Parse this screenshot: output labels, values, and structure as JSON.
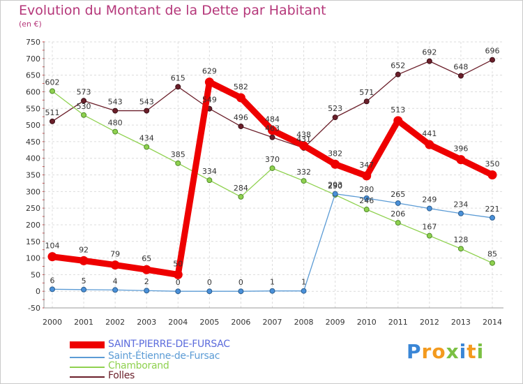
{
  "chart_data": {
    "type": "line",
    "title": "Evolution du Montant de la Dette par Habitant",
    "subtitle": "(en €)",
    "x": [
      "2000",
      "2001",
      "2002",
      "2003",
      "2004",
      "2005",
      "2006",
      "2007",
      "2008",
      "2009",
      "2010",
      "2011",
      "2012",
      "2013",
      "2014"
    ],
    "yticks": [
      "-50",
      "0",
      "50",
      "100",
      "150",
      "200",
      "250",
      "300",
      "350",
      "400",
      "450",
      "500",
      "550",
      "600",
      "650",
      "700",
      "750"
    ],
    "ylim": [
      -50,
      750
    ],
    "grid": true,
    "legend_position": "bottom-left",
    "series": [
      {
        "name": "SAINT-PIERRE-DE-FURSAC",
        "color": "#ee0000",
        "values": [
          104,
          92,
          79,
          65,
          50,
          629,
          582,
          484,
          438,
          382,
          347,
          513,
          441,
          396,
          350
        ],
        "labels": [
          "104",
          "92",
          "79",
          "65",
          "50",
          "629",
          "582",
          "484",
          "438",
          "382",
          "347",
          "513",
          "441",
          "396",
          "350"
        ]
      },
      {
        "name": "Saint-Étienne-de-Fursac",
        "color": "#5b9bd5",
        "values": [
          6,
          5,
          4,
          2,
          0,
          0,
          0,
          1,
          1,
          293,
          280,
          265,
          249,
          234,
          221
        ],
        "labels": [
          "6",
          "5",
          "4",
          "2",
          "0",
          "0",
          "0",
          "1",
          "1",
          "293",
          "280",
          "265",
          "249",
          "234",
          "221"
        ]
      },
      {
        "name": "Chamborand",
        "color": "#8fd14f",
        "values": [
          602,
          530,
          480,
          434,
          385,
          334,
          284,
          370,
          332,
          290,
          246,
          206,
          167,
          128,
          85
        ],
        "labels": [
          "602",
          "530",
          "480",
          "434",
          "385",
          "334",
          "284",
          "370",
          "332",
          "290",
          "246",
          "206",
          "167",
          "128",
          "85"
        ]
      },
      {
        "name": "Folles",
        "color": "#6b1f2a",
        "values": [
          511,
          573,
          543,
          543,
          615,
          549,
          496,
          463,
          431,
          523,
          571,
          652,
          692,
          648,
          696
        ],
        "labels": [
          "511",
          "573",
          "543",
          "543",
          "615",
          "549",
          "496",
          "463",
          "431",
          "523",
          "571",
          "652",
          "692",
          "648",
          "696"
        ]
      }
    ]
  },
  "logo": {
    "letters": [
      "P",
      "r",
      "o",
      "x",
      "i",
      "t",
      "i"
    ],
    "colors": [
      "#3a86d6",
      "#f39a1e",
      "#f39a1e",
      "#7bc043",
      "#3a86d6",
      "#f39a1e",
      "#7bc043"
    ]
  }
}
